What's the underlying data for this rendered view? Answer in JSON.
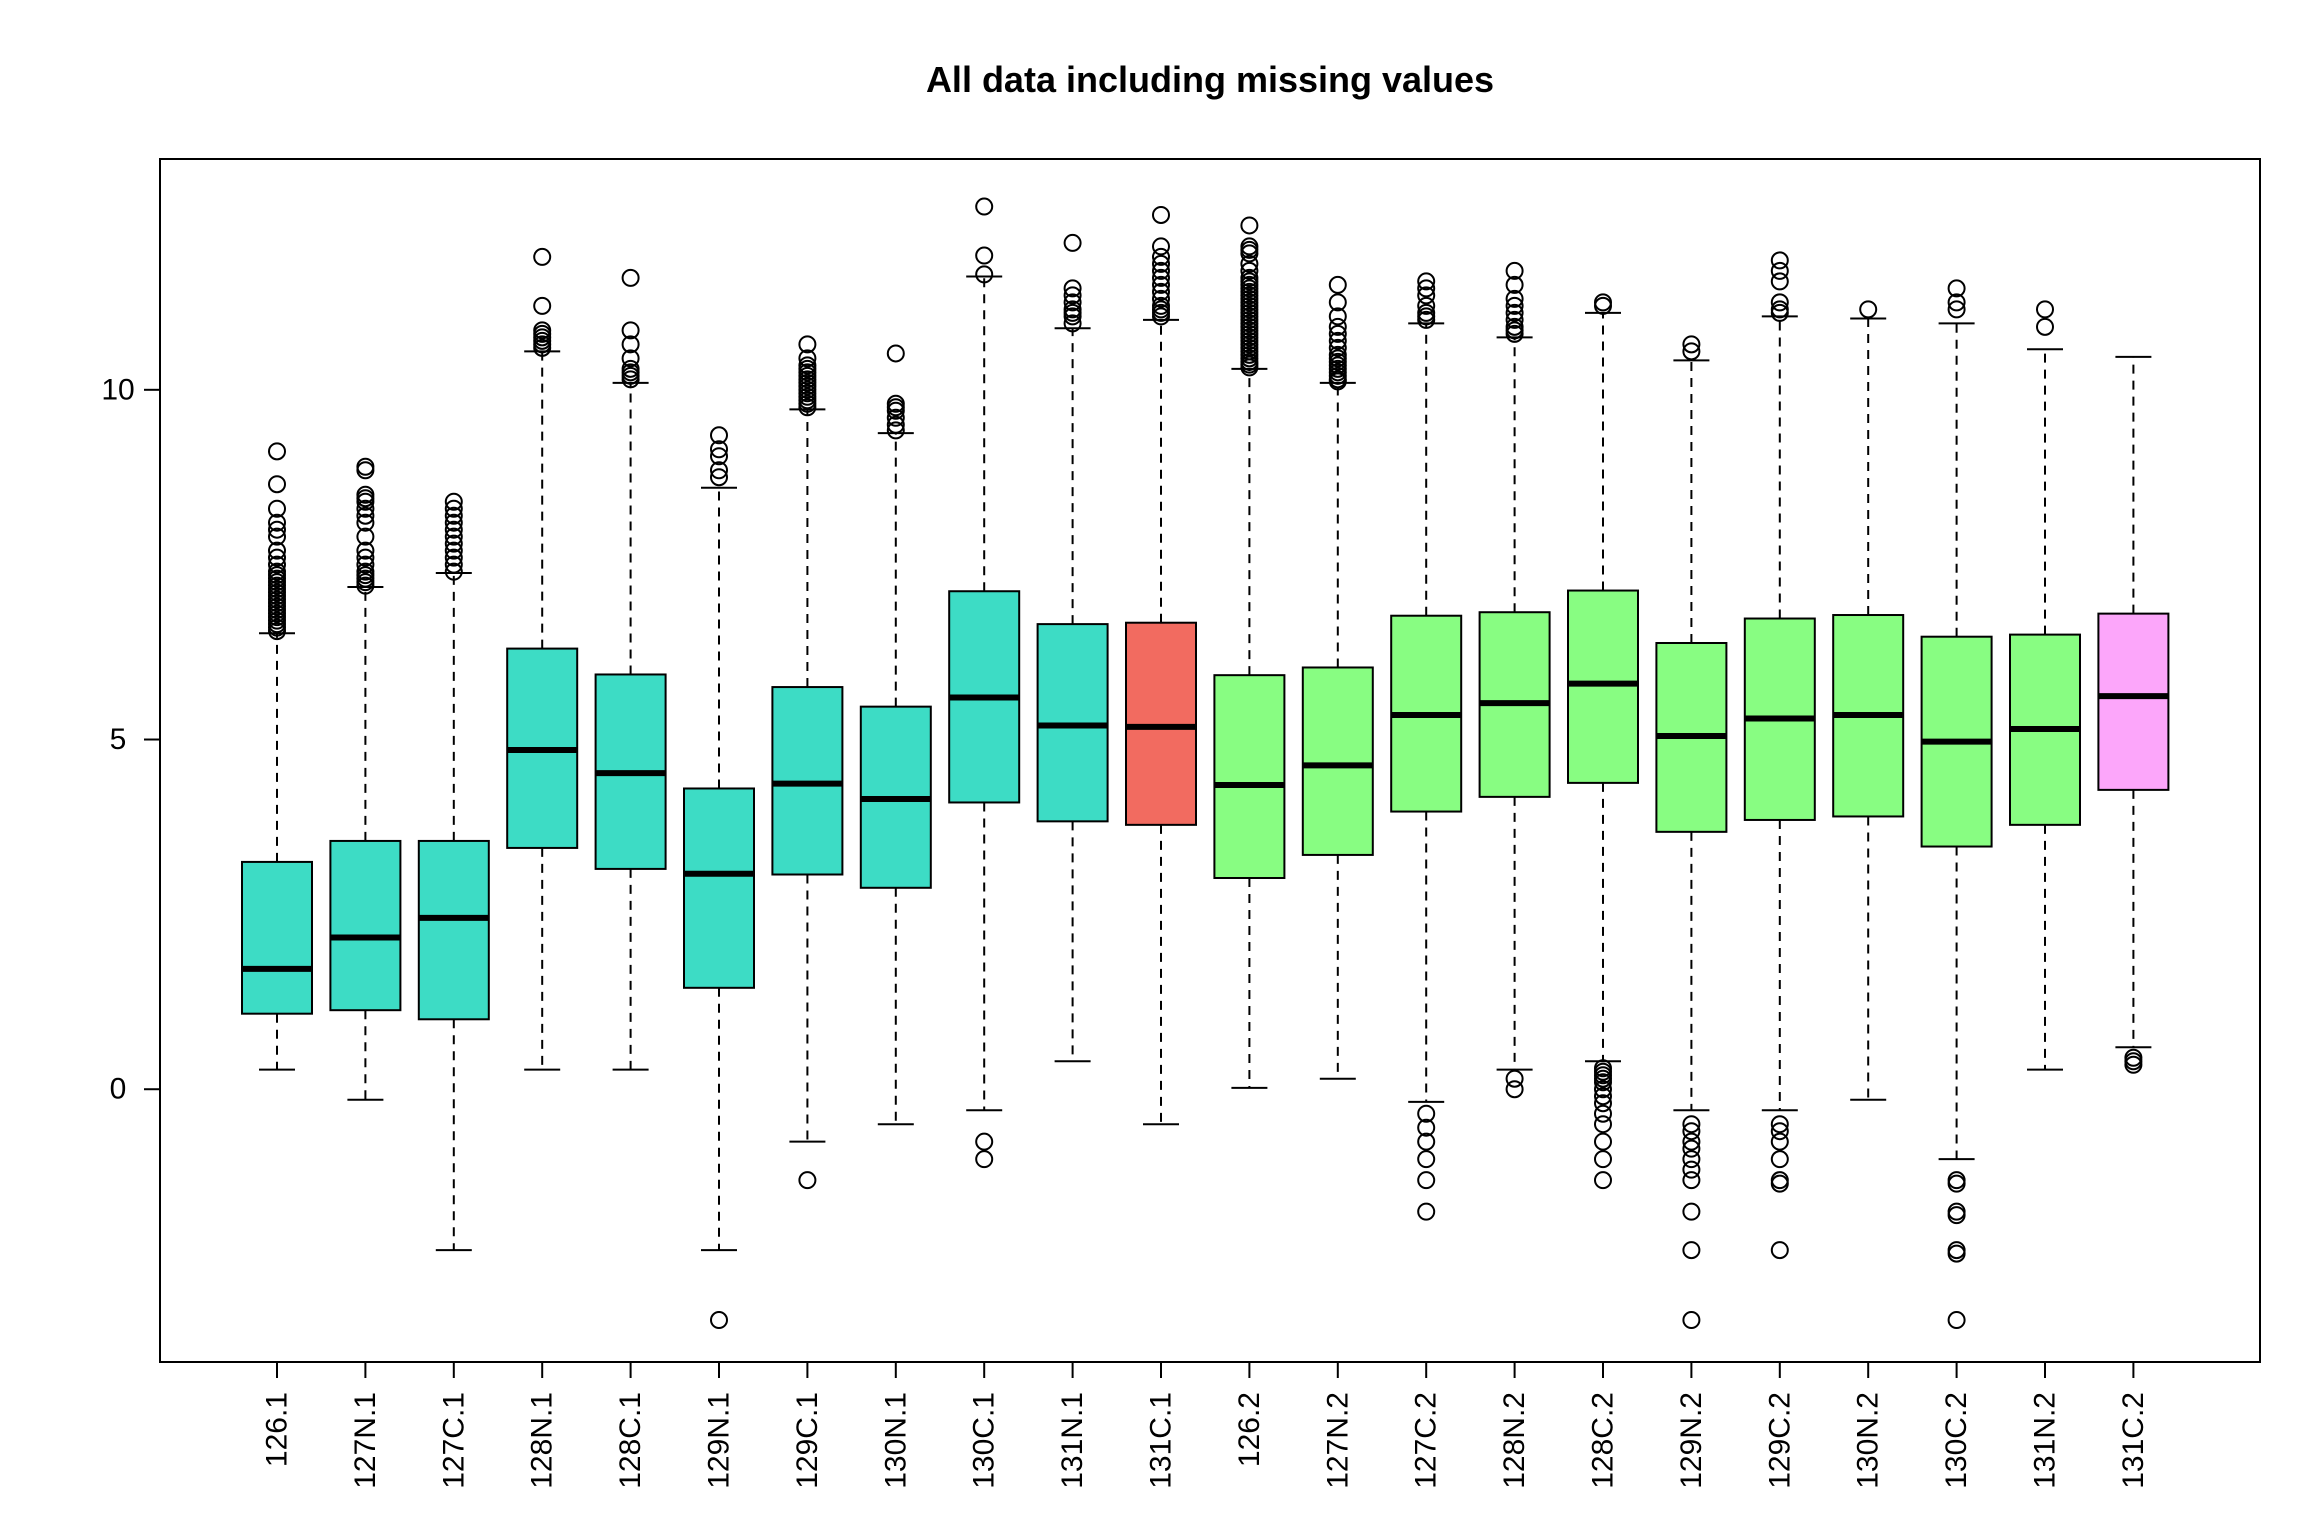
{
  "chart_data": {
    "type": "box",
    "title": "All data including missing values",
    "xlabel": "",
    "ylabel": "",
    "ylim": [
      -3.9,
      13.3
    ],
    "yticks": [
      0,
      5,
      10
    ],
    "grid": false,
    "legend": "none",
    "boxes": [
      {
        "label": "126.1",
        "color": "#3ddcc5",
        "whisker_low": 0.28,
        "q1": 1.08,
        "median": 1.72,
        "q3": 3.25,
        "whisker_high": 6.52,
        "outliers": [
          6.55,
          6.6,
          6.65,
          6.7,
          6.75,
          6.8,
          6.85,
          6.9,
          6.95,
          7.0,
          7.05,
          7.1,
          7.15,
          7.2,
          7.25,
          7.3,
          7.35,
          7.4,
          7.5,
          7.6,
          7.7,
          7.9,
          8.0,
          8.1,
          8.3,
          8.65,
          9.12
        ]
      },
      {
        "label": "127N.1",
        "color": "#3ddcc5",
        "whisker_low": -0.15,
        "q1": 1.13,
        "median": 2.17,
        "q3": 3.55,
        "whisker_high": 7.18,
        "outliers": [
          7.2,
          7.25,
          7.3,
          7.35,
          7.4,
          7.5,
          7.6,
          7.7,
          7.9,
          8.1,
          8.2,
          8.3,
          8.4,
          8.45,
          8.5,
          8.85,
          8.9
        ]
      },
      {
        "label": "127C.1",
        "color": "#3ddcc5",
        "whisker_low": -2.3,
        "q1": 1.0,
        "median": 2.45,
        "q3": 3.55,
        "whisker_high": 7.38,
        "outliers": [
          7.4,
          7.5,
          7.6,
          7.7,
          7.8,
          7.9,
          8.0,
          8.1,
          8.2,
          8.3,
          8.4
        ]
      },
      {
        "label": "128N.1",
        "color": "#3ddcc5",
        "whisker_low": 0.28,
        "q1": 3.45,
        "median": 4.85,
        "q3": 6.3,
        "whisker_high": 10.55,
        "outliers": [
          10.6,
          10.65,
          10.7,
          10.75,
          10.8,
          10.85,
          11.2,
          11.9
        ]
      },
      {
        "label": "128C.1",
        "color": "#3ddcc5",
        "whisker_low": 0.28,
        "q1": 3.15,
        "median": 4.52,
        "q3": 5.93,
        "whisker_high": 10.1,
        "outliers": [
          10.15,
          10.2,
          10.25,
          10.3,
          10.45,
          10.65,
          10.85,
          11.6
        ]
      },
      {
        "label": "129N.1",
        "color": "#3ddcc5",
        "whisker_low": -2.3,
        "q1": 1.45,
        "median": 3.08,
        "q3": 4.3,
        "whisker_high": 8.6,
        "outliers": [
          8.75,
          8.85,
          9.05,
          9.15,
          9.35,
          -3.3
        ]
      },
      {
        "label": "129C.1",
        "color": "#3ddcc5",
        "whisker_low": -0.75,
        "q1": 3.07,
        "median": 4.37,
        "q3": 5.75,
        "whisker_high": 9.72,
        "outliers": [
          9.75,
          9.8,
          9.85,
          9.9,
          9.95,
          10.0,
          10.05,
          10.1,
          10.15,
          10.2,
          10.25,
          10.3,
          10.35,
          10.45,
          10.65,
          -1.3
        ]
      },
      {
        "label": "130N.1",
        "color": "#3ddcc5",
        "whisker_low": -0.5,
        "q1": 2.88,
        "median": 4.15,
        "q3": 5.47,
        "whisker_high": 9.38,
        "outliers": [
          9.42,
          9.5,
          9.6,
          9.7,
          9.75,
          9.8,
          10.52
        ]
      },
      {
        "label": "130C.1",
        "color": "#3ddcc5",
        "whisker_low": -0.3,
        "q1": 4.1,
        "median": 5.6,
        "q3": 7.12,
        "whisker_high": 11.62,
        "outliers": [
          11.65,
          11.92,
          12.62,
          -0.75,
          -1.0
        ]
      },
      {
        "label": "131N.1",
        "color": "#3ddcc5",
        "whisker_low": 0.4,
        "q1": 3.83,
        "median": 5.2,
        "q3": 6.65,
        "whisker_high": 10.88,
        "outliers": [
          10.95,
          11.05,
          11.1,
          11.15,
          11.25,
          11.35,
          11.45,
          12.1
        ]
      },
      {
        "label": "131C.1",
        "color": "#f26b60",
        "whisker_low": -0.5,
        "q1": 3.78,
        "median": 5.18,
        "q3": 6.67,
        "whisker_high": 11.0,
        "outliers": [
          11.05,
          11.1,
          11.15,
          11.2,
          11.3,
          11.4,
          11.5,
          11.6,
          11.7,
          11.8,
          11.9,
          12.05,
          12.5
        ]
      },
      {
        "label": "126.2",
        "color": "#88fd82",
        "whisker_low": 0.02,
        "q1": 3.02,
        "median": 4.35,
        "q3": 5.92,
        "whisker_high": 10.3,
        "outliers": [
          10.32,
          10.36,
          10.4,
          10.45,
          10.5,
          10.55,
          10.6,
          10.65,
          10.7,
          10.75,
          10.8,
          10.85,
          10.9,
          10.95,
          11.0,
          11.05,
          11.1,
          11.15,
          11.2,
          11.25,
          11.3,
          11.35,
          11.4,
          11.45,
          11.5,
          11.55,
          11.6,
          11.7,
          11.8,
          11.95,
          12.0,
          12.05,
          12.35
        ]
      },
      {
        "label": "127N.2",
        "color": "#88fd82",
        "whisker_low": 0.15,
        "q1": 3.35,
        "median": 4.63,
        "q3": 6.03,
        "whisker_high": 10.1,
        "outliers": [
          10.12,
          10.15,
          10.2,
          10.25,
          10.3,
          10.35,
          10.4,
          10.45,
          10.5,
          10.6,
          10.7,
          10.8,
          10.9,
          11.05,
          11.25,
          11.5
        ]
      },
      {
        "label": "127C.2",
        "color": "#88fd82",
        "whisker_low": -0.18,
        "q1": 3.97,
        "median": 5.35,
        "q3": 6.77,
        "whisker_high": 10.95,
        "outliers": [
          11.0,
          11.05,
          11.1,
          11.2,
          11.35,
          11.45,
          11.55,
          -0.35,
          -0.55,
          -0.75,
          -1.0,
          -1.3,
          -1.75
        ]
      },
      {
        "label": "128N.2",
        "color": "#88fd82",
        "whisker_low": 0.28,
        "q1": 4.18,
        "median": 5.52,
        "q3": 6.82,
        "whisker_high": 10.75,
        "outliers": [
          10.8,
          10.85,
          10.9,
          11.0,
          11.1,
          11.2,
          11.3,
          11.5,
          11.7,
          0.15,
          0.0
        ]
      },
      {
        "label": "128C.2",
        "color": "#88fd82",
        "whisker_low": 0.4,
        "q1": 4.38,
        "median": 5.8,
        "q3": 7.13,
        "whisker_high": 11.1,
        "outliers": [
          11.2,
          11.25,
          0.3,
          0.25,
          0.2,
          0.15,
          0.1,
          0.0,
          -0.1,
          -0.2,
          -0.35,
          -0.5,
          -0.75,
          -1.0,
          -1.3
        ]
      },
      {
        "label": "129N.2",
        "color": "#88fd82",
        "whisker_low": -0.3,
        "q1": 3.68,
        "median": 5.05,
        "q3": 6.38,
        "whisker_high": 10.42,
        "outliers": [
          10.55,
          10.65,
          -0.5,
          -0.6,
          -0.75,
          -0.85,
          -1.0,
          -1.15,
          -1.3,
          -1.75,
          -2.3,
          -3.3
        ]
      },
      {
        "label": "129C.2",
        "color": "#88fd82",
        "whisker_low": -0.3,
        "q1": 3.85,
        "median": 5.3,
        "q3": 6.73,
        "whisker_high": 11.05,
        "outliers": [
          11.1,
          11.15,
          11.25,
          11.55,
          11.7,
          11.85,
          -0.5,
          -0.6,
          -0.75,
          -1.0,
          -1.3,
          -1.35,
          -2.3
        ]
      },
      {
        "label": "130N.2",
        "color": "#88fd82",
        "whisker_low": -0.15,
        "q1": 3.9,
        "median": 5.35,
        "q3": 6.78,
        "whisker_high": 11.02,
        "outliers": [
          11.15
        ]
      },
      {
        "label": "130C.2",
        "color": "#88fd82",
        "whisker_low": -1.0,
        "q1": 3.47,
        "median": 4.97,
        "q3": 6.47,
        "whisker_high": 10.95,
        "outliers": [
          11.15,
          11.25,
          11.45,
          -1.3,
          -1.35,
          -1.75,
          -1.8,
          -2.3,
          -2.35,
          -3.3
        ]
      },
      {
        "label": "131N.2",
        "color": "#88fd82",
        "whisker_low": 0.28,
        "q1": 3.78,
        "median": 5.15,
        "q3": 6.5,
        "whisker_high": 10.58,
        "outliers": [
          10.9,
          11.15
        ]
      },
      {
        "label": "131C.2",
        "color": "#fca6fa",
        "whisker_low": 0.6,
        "q1": 4.28,
        "median": 5.62,
        "q3": 6.8,
        "whisker_high": 10.47,
        "outliers": [
          0.45,
          0.4,
          0.35
        ]
      }
    ]
  }
}
